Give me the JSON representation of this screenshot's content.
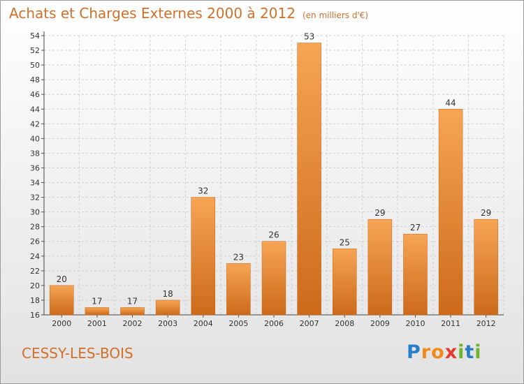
{
  "chart_data": {
    "type": "bar",
    "title": "Achats et Charges Externes 2000 à 2012",
    "subtitle": "(en milliers d'€)",
    "categories": [
      "2000",
      "2001",
      "2002",
      "2003",
      "2004",
      "2005",
      "2006",
      "2007",
      "2008",
      "2009",
      "2010",
      "2011",
      "2012"
    ],
    "values": [
      20,
      17,
      17,
      18,
      32,
      23,
      26,
      53,
      25,
      29,
      27,
      44,
      29
    ],
    "ylim": [
      16,
      54
    ],
    "yticks": [
      16,
      18,
      20,
      22,
      24,
      26,
      28,
      30,
      32,
      34,
      36,
      38,
      40,
      42,
      44,
      46,
      48,
      50,
      52,
      54
    ],
    "grid": true,
    "bar_color": "#e8872e"
  },
  "commune": "CESSY-LES-BOIS",
  "logo": {
    "text": "Proxiti",
    "letters": [
      {
        "char": "P",
        "color": "#2a7fc9"
      },
      {
        "char": "r",
        "color": "#f08a1c"
      },
      {
        "char": "o",
        "color": "#f08a1c"
      },
      {
        "char": "x",
        "color": "#e23b2a"
      },
      {
        "char": "i",
        "color": "#6bb42b"
      },
      {
        "char": "t",
        "color": "#2a7fc9"
      },
      {
        "char": "i",
        "color": "#6bb42b"
      }
    ]
  }
}
